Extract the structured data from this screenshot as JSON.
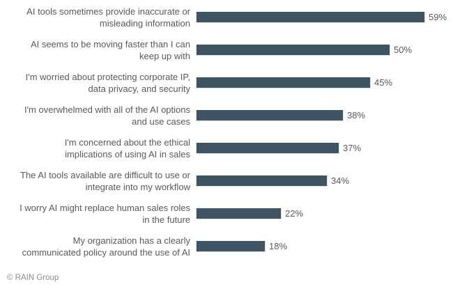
{
  "chart_data": {
    "type": "bar",
    "orientation": "horizontal",
    "title": "",
    "xlabel": "",
    "ylabel": "",
    "unit": "%",
    "xlim": [
      0,
      63
    ],
    "grid": false,
    "legend": false,
    "bar_color": "#3e5463",
    "label_color": "#595959",
    "categories": [
      "AI tools sometimes provide inaccurate or misleading information",
      "AI seems to be moving faster than I can keep up with",
      "I'm worried about protecting corporate IP, data privacy, and security",
      "I'm overwhelmed with all of the AI options and use cases",
      "I'm concerned about the ethical implications of using AI in sales",
      "The AI tools available are difficult to use or integrate into my workflow",
      "I worry AI might replace human sales roles in the future",
      "My organization has a clearly communicated policy around the use of AI"
    ],
    "values": [
      59,
      50,
      45,
      38,
      37,
      34,
      22,
      18
    ],
    "rows": [
      {
        "lines": [
          "AI tools sometimes provide inaccurate or",
          "misleading information"
        ],
        "value": 59,
        "value_label": "59%"
      },
      {
        "lines": [
          "AI seems to be moving faster than I can",
          "keep up with"
        ],
        "value": 50,
        "value_label": "50%"
      },
      {
        "lines": [
          "I'm worried about protecting corporate IP,",
          "data privacy, and security"
        ],
        "value": 45,
        "value_label": "45%"
      },
      {
        "lines": [
          "I'm overwhelmed with all of the AI options",
          "and use cases"
        ],
        "value": 38,
        "value_label": "38%"
      },
      {
        "lines": [
          "I'm concerned about the ethical",
          "implications of using AI in sales"
        ],
        "value": 37,
        "value_label": "37%"
      },
      {
        "lines": [
          "The AI tools available are difficult to use or",
          "integrate into my workflow"
        ],
        "value": 34,
        "value_label": "34%"
      },
      {
        "lines": [
          "I worry AI might replace human sales roles",
          "in the future"
        ],
        "value": 22,
        "value_label": "22%"
      },
      {
        "lines": [
          "My organization has a clearly",
          "communicated policy around the use of AI"
        ],
        "value": 18,
        "value_label": "18%"
      }
    ]
  },
  "footer": {
    "copyright": "© RAIN Group"
  }
}
